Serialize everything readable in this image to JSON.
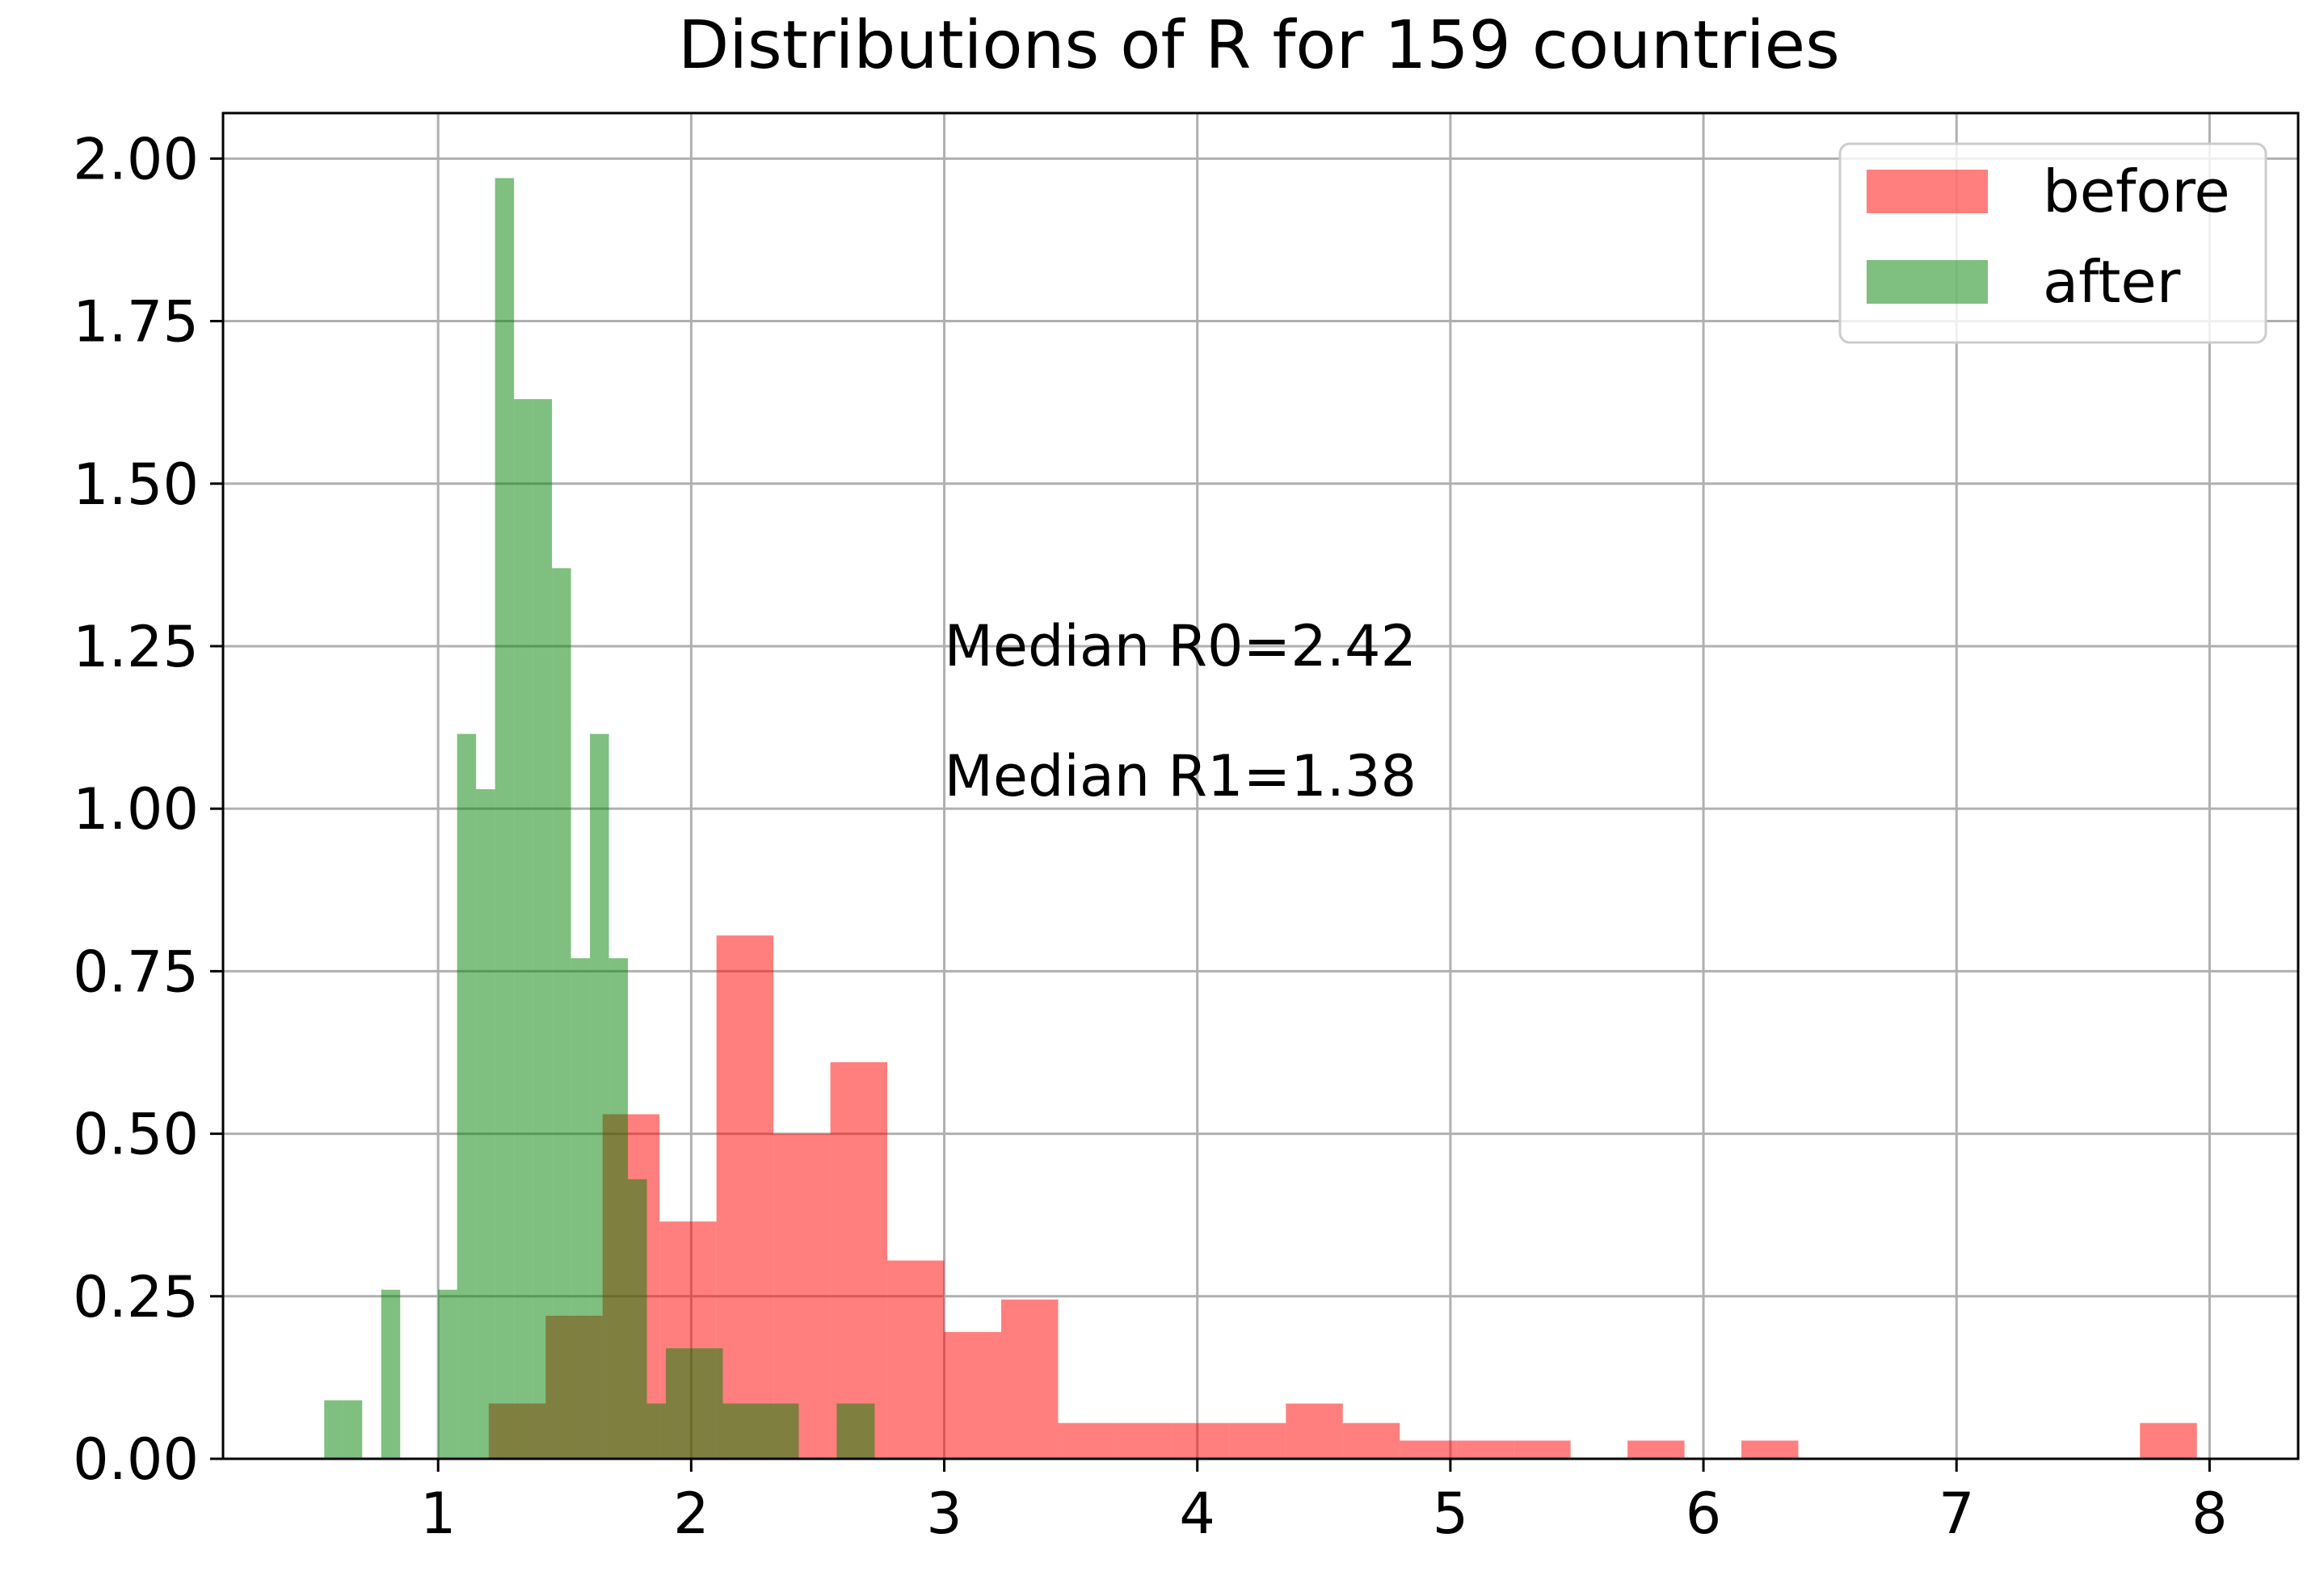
{
  "chart_data": {
    "type": "bar",
    "title": "Distributions of R for 159 countries",
    "xlabel": "",
    "ylabel": "",
    "xlim": [
      0.15,
      8.35
    ],
    "ylim": [
      0,
      2.07
    ],
    "grid": true,
    "legend_position": "top-right",
    "x_ticks": [
      1,
      2,
      3,
      4,
      5,
      6,
      7,
      8
    ],
    "x_tick_labels": [
      "1",
      "2",
      "3",
      "4",
      "5",
      "6",
      "7",
      "8"
    ],
    "y_ticks": [
      0,
      0.25,
      0.5,
      0.75,
      1.0,
      1.25,
      1.5,
      1.75,
      2.0
    ],
    "y_tick_labels": [
      "0.00",
      "0.25",
      "0.50",
      "0.75",
      "1.00",
      "1.25",
      "1.50",
      "1.75",
      "2.00"
    ],
    "annotations": [
      {
        "text": "Median R0=2.42",
        "x": 3.0,
        "y": 1.22
      },
      {
        "text": "Median R1=1.38",
        "x": 3.0,
        "y": 1.02
      }
    ],
    "series": [
      {
        "name": "before",
        "color": "#ff0000",
        "alpha": 0.5,
        "bins": [
          [
            1.2,
            1.425,
            0.085
          ],
          [
            1.425,
            1.65,
            0.22
          ],
          [
            1.65,
            1.875,
            0.53
          ],
          [
            1.875,
            2.1,
            0.365
          ],
          [
            2.1,
            2.325,
            0.805
          ],
          [
            2.325,
            2.55,
            0.5
          ],
          [
            2.55,
            2.775,
            0.61
          ],
          [
            2.775,
            3.0,
            0.305
          ],
          [
            3.0,
            3.225,
            0.195
          ],
          [
            3.225,
            3.45,
            0.245
          ],
          [
            3.45,
            3.675,
            0.055
          ],
          [
            3.675,
            3.9,
            0.055
          ],
          [
            3.9,
            4.125,
            0.055
          ],
          [
            4.125,
            4.35,
            0.055
          ],
          [
            4.35,
            4.575,
            0.085
          ],
          [
            4.575,
            4.8,
            0.055
          ],
          [
            4.8,
            5.025,
            0.028
          ],
          [
            5.025,
            5.25,
            0.028
          ],
          [
            5.25,
            5.475,
            0.028
          ],
          [
            5.475,
            5.7,
            0.0
          ],
          [
            5.7,
            5.925,
            0.028
          ],
          [
            5.925,
            6.15,
            0.0
          ],
          [
            6.15,
            6.375,
            0.028
          ],
          [
            6.375,
            6.6,
            0.0
          ],
          [
            6.6,
            6.825,
            0.0
          ],
          [
            6.825,
            7.05,
            0.0
          ],
          [
            7.05,
            7.275,
            0.0
          ],
          [
            7.275,
            7.5,
            0.0
          ],
          [
            7.5,
            7.725,
            0.0
          ],
          [
            7.725,
            7.95,
            0.055
          ]
        ]
      },
      {
        "name": "after",
        "color": "#008000",
        "alpha": 0.5,
        "bins": [
          [
            0.55,
            0.625,
            0.09
          ],
          [
            0.625,
            0.7,
            0.09
          ],
          [
            0.7,
            0.775,
            0.0
          ],
          [
            0.775,
            0.85,
            0.26
          ],
          [
            0.85,
            0.925,
            0.0
          ],
          [
            0.925,
            1.0,
            0.0
          ],
          [
            1.0,
            1.075,
            0.26
          ],
          [
            1.075,
            1.15,
            1.115
          ],
          [
            1.15,
            1.225,
            1.03
          ],
          [
            1.225,
            1.3,
            1.97
          ],
          [
            1.3,
            1.375,
            1.63
          ],
          [
            1.375,
            1.45,
            1.63
          ],
          [
            1.45,
            1.525,
            1.37
          ],
          [
            1.525,
            1.6,
            0.77
          ],
          [
            1.6,
            1.675,
            1.115
          ],
          [
            1.675,
            1.75,
            0.77
          ],
          [
            1.75,
            1.825,
            0.43
          ],
          [
            1.825,
            1.9,
            0.085
          ],
          [
            1.9,
            1.975,
            0.17
          ],
          [
            1.975,
            2.05,
            0.17
          ],
          [
            2.05,
            2.125,
            0.17
          ],
          [
            2.125,
            2.2,
            0.085
          ],
          [
            2.2,
            2.275,
            0.085
          ],
          [
            2.275,
            2.35,
            0.085
          ],
          [
            2.35,
            2.425,
            0.085
          ],
          [
            2.425,
            2.5,
            0.0
          ],
          [
            2.5,
            2.575,
            0.0
          ],
          [
            2.575,
            2.65,
            0.085
          ],
          [
            2.65,
            2.725,
            0.085
          ]
        ]
      }
    ]
  }
}
